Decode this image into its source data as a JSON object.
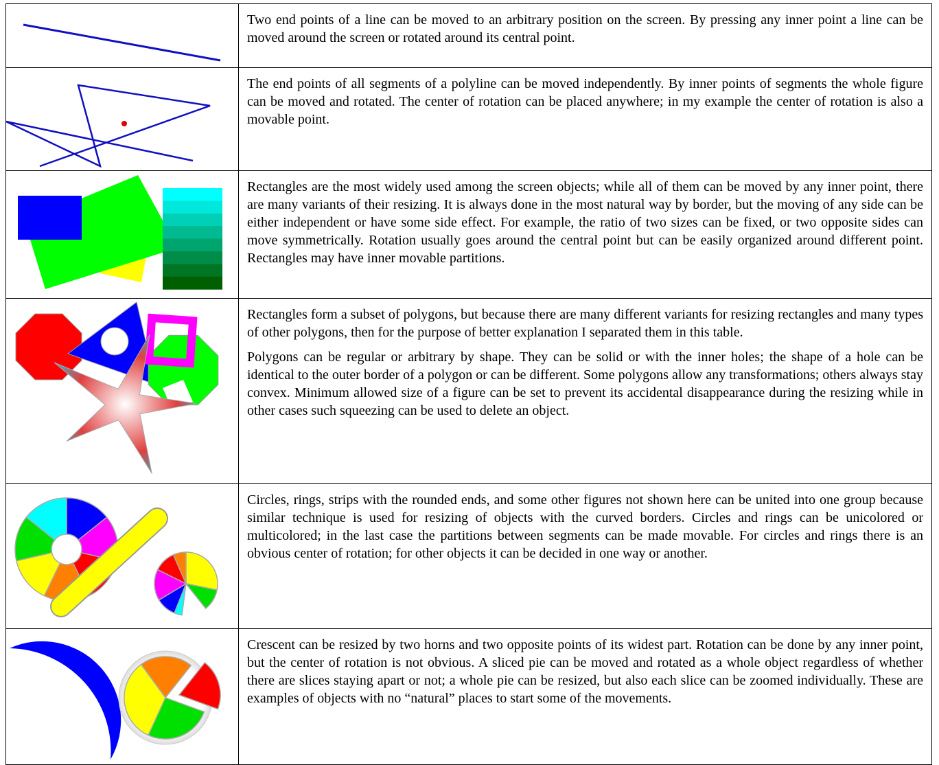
{
  "rows": [
    {
      "paragraphs": [
        "Two end points of a line can be moved to an arbitrary position on the screen.  By pressing any inner point a line can be moved around the screen or rotated around its central point."
      ]
    },
    {
      "paragraphs": [
        "The end points of all segments of a polyline can be moved independently.  By inner points of segments the whole figure can be moved and rotated.  The center of rotation can be placed anywhere; in my example the center of rotation is also a movable point."
      ]
    },
    {
      "paragraphs": [
        "Rectangles are the most widely used among the screen objects; while all of them can be moved by any inner point, there are many variants of their resizing.  It is always done in the most natural way by border, but the moving of any side can be either independent or have some side effect.  For example, the ratio of two sizes can be fixed, or two opposite sides can move symmetrically.  Rotation usually goes around the central point but can be easily organized around different point.  Rectangles may have inner movable partitions."
      ]
    },
    {
      "paragraphs": [
        "Rectangles form a subset of polygons, but because there are many different variants for resizing rectangles and many types of other polygons, then for the purpose of better explanation I separated them in this table.",
        "Polygons can be regular or arbitrary by shape.  They can be solid or with the inner holes; the shape of a hole can be identical to the outer border of a polygon or can be different.  Some polygons allow any transformations; others always stay convex.  Minimum allowed size of a figure can be set to prevent its accidental disappearance during the resizing while in other cases such squeezing can be used to delete an object."
      ]
    },
    {
      "paragraphs": [
        "Circles, rings, strips with the rounded ends, and some other figures not shown here can be united into one group because similar technique is used for resizing of objects with the curved borders.  Circles and rings can be unicolored or multicolored; in the last case the partitions between segments can be made movable.  For circles and rings there is an obvious center of rotation; for other objects it can be decided in one way or another."
      ]
    },
    {
      "paragraphs": [
        "Crescent can be resized by two horns and two opposite points of its widest part.  Rotation can be done by any inner point, but the center of rotation is not obvious.  A sliced pie can be moved and rotated as a whole object regardless of whether there are slices staying apart or not; a whole pie can be resized, but also each slice can be zoomed individually.  These are examples of objects with no “natural” places to start some of the movements."
      ]
    }
  ]
}
